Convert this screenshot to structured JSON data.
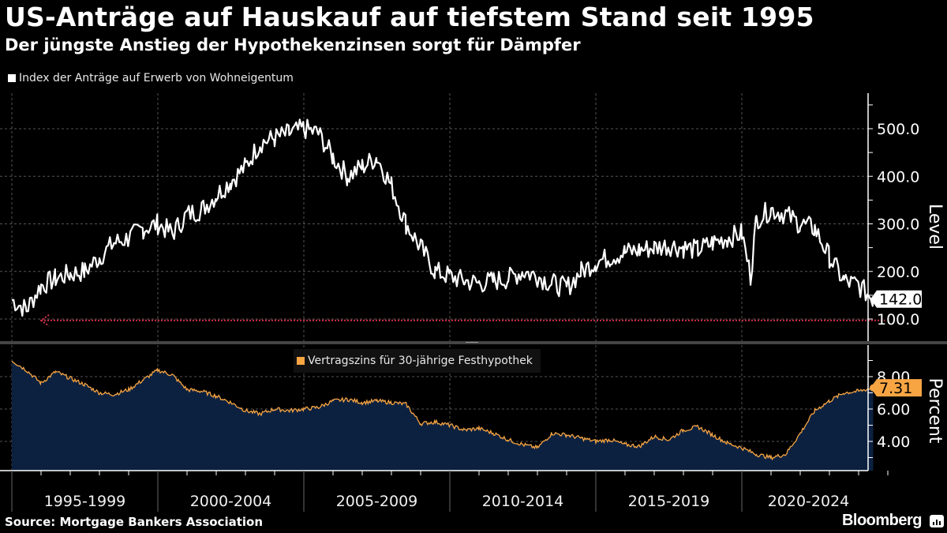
{
  "header": {
    "title": "US-Anträge auf Hauskauf auf tiefstem Stand seit 1995",
    "subtitle": "Der jüngste Anstieg der Hypothekenzinsen sorgt für Dämpfer"
  },
  "footer": {
    "source": "Source: Mortgage Bankers Association",
    "brand": "Bloomberg",
    "brand_icon": "bloomberg-chart-icon"
  },
  "colors": {
    "background": "#000000",
    "index_line": "#ffffff",
    "rate_line": "#f7a543",
    "rate_fill": "#0c2140",
    "reference_line": "#d6304a",
    "grid": "#555555"
  },
  "chart_data": [
    {
      "type": "line",
      "title": "Index der Anträge auf Erwerb von Wohneigentum",
      "legend": [
        "Index der Anträge auf Erwerb von Wohneigentum"
      ],
      "ylabel": "Level",
      "ylim": [
        50,
        560
      ],
      "yticks": [
        "100.0",
        "200.0",
        "300.0",
        "400.0",
        "500.0"
      ],
      "last_value_label": "142.0",
      "reference_line": {
        "value": 97,
        "style": "dotted arrow pointing left",
        "from": 1996.0,
        "to": 2024.9
      },
      "grid": true,
      "x": [
        1995.0,
        1995.5,
        1996.0,
        1996.5,
        1997.0,
        1997.5,
        1998.0,
        1998.5,
        1999.0,
        1999.5,
        2000.0,
        2000.5,
        2001.0,
        2001.5,
        2002.0,
        2002.5,
        2003.0,
        2003.5,
        2004.0,
        2004.5,
        2005.0,
        2005.5,
        2006.0,
        2006.5,
        2007.0,
        2007.5,
        2008.0,
        2008.5,
        2009.0,
        2009.5,
        2010.0,
        2010.5,
        2011.0,
        2011.5,
        2012.0,
        2012.5,
        2013.0,
        2013.5,
        2014.0,
        2014.5,
        2015.0,
        2015.5,
        2016.0,
        2016.5,
        2017.0,
        2017.5,
        2018.0,
        2018.5,
        2019.0,
        2019.5,
        2020.0,
        2020.3,
        2020.5,
        2021.0,
        2021.5,
        2022.0,
        2022.5,
        2023.0,
        2023.5,
        2024.0,
        2024.5
      ],
      "values": [
        140,
        120,
        170,
        185,
        195,
        200,
        230,
        260,
        270,
        290,
        300,
        280,
        320,
        330,
        360,
        390,
        420,
        470,
        480,
        490,
        500,
        490,
        440,
        400,
        420,
        440,
        380,
        300,
        250,
        200,
        190,
        180,
        175,
        180,
        185,
        200,
        190,
        175,
        165,
        200,
        220,
        230,
        240,
        245,
        250,
        255,
        250,
        245,
        260,
        270,
        280,
        190,
        310,
        330,
        320,
        300,
        290,
        230,
        180,
        170,
        142
      ]
    },
    {
      "type": "area",
      "title": "Vertragszins für 30-jährige Festhypothek",
      "legend": [
        "Vertragszins für 30-jährige Festhypothek"
      ],
      "ylabel": "Percent",
      "ylim": [
        2.2,
        10.0
      ],
      "yticks": [
        "4.00",
        "6.00",
        "8.00"
      ],
      "last_value_label": "7.31",
      "grid": true,
      "x": [
        1995.0,
        1995.5,
        1996.0,
        1996.5,
        1997.0,
        1997.5,
        1998.0,
        1998.5,
        1999.0,
        1999.5,
        2000.0,
        2000.5,
        2001.0,
        2001.5,
        2002.0,
        2002.5,
        2003.0,
        2003.5,
        2004.0,
        2004.5,
        2005.0,
        2005.5,
        2006.0,
        2006.5,
        2007.0,
        2007.5,
        2008.0,
        2008.5,
        2009.0,
        2009.5,
        2010.0,
        2010.5,
        2011.0,
        2011.5,
        2012.0,
        2012.5,
        2013.0,
        2013.5,
        2014.0,
        2014.5,
        2015.0,
        2015.5,
        2016.0,
        2016.5,
        2017.0,
        2017.5,
        2018.0,
        2018.5,
        2019.0,
        2019.5,
        2020.0,
        2020.5,
        2021.0,
        2021.5,
        2022.0,
        2022.5,
        2023.0,
        2023.5,
        2024.0,
        2024.5
      ],
      "values": [
        9.0,
        8.4,
        7.6,
        8.3,
        7.9,
        7.5,
        7.0,
        6.9,
        7.2,
        7.8,
        8.4,
        8.1,
        7.2,
        7.1,
        6.8,
        6.4,
        5.9,
        5.7,
        6.0,
        5.9,
        6.0,
        6.1,
        6.5,
        6.6,
        6.4,
        6.5,
        6.4,
        6.3,
        5.1,
        5.2,
        5.0,
        4.7,
        4.8,
        4.5,
        4.1,
        3.8,
        3.6,
        4.5,
        4.4,
        4.2,
        4.0,
        4.1,
        3.8,
        3.7,
        4.3,
        4.1,
        4.7,
        4.9,
        4.4,
        3.9,
        3.6,
        3.2,
        3.0,
        3.2,
        4.5,
        5.9,
        6.5,
        7.0,
        7.1,
        7.31
      ]
    }
  ],
  "x_axis": {
    "periods": [
      "1995-1999",
      "2000-2004",
      "2005-2009",
      "2010-2014",
      "2015-2019",
      "2020-2024"
    ]
  }
}
